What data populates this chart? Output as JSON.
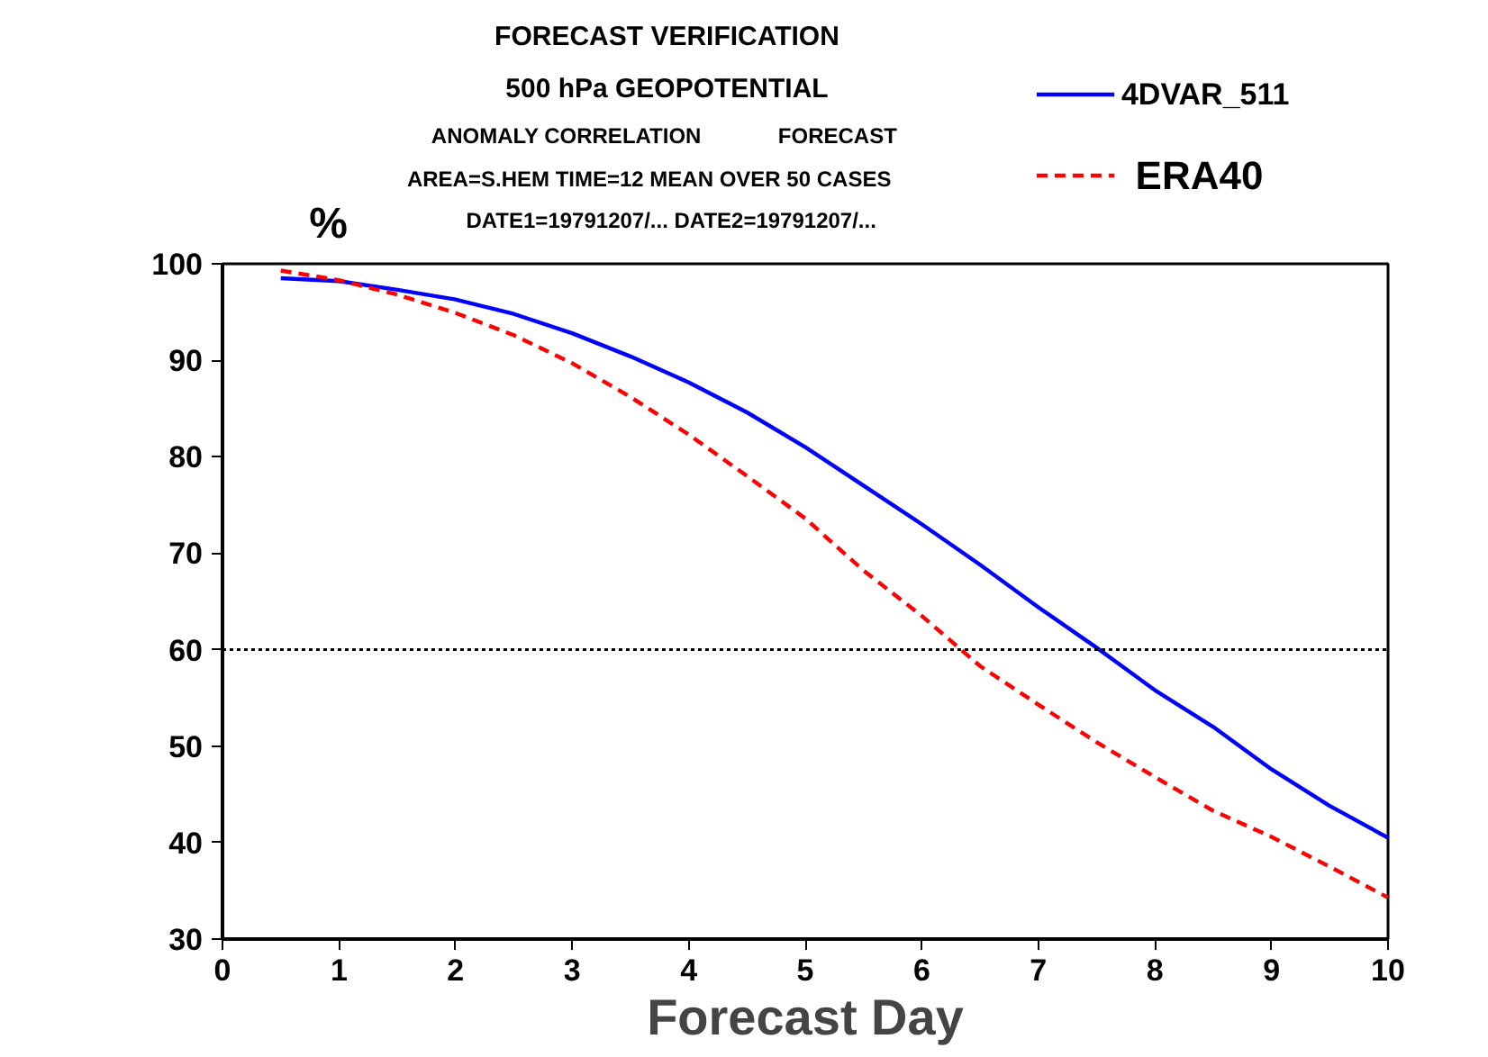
{
  "chart_data": {
    "type": "line",
    "title": "FORECAST VERIFICATION",
    "subtitle": "500 hPa GEOPOTENTIAL",
    "annotations": [
      "ANOMALY CORRELATION",
      "FORECAST",
      "AREA=S.HEM   TIME=12   MEAN OVER  50 CASES",
      "DATE1=19791207/... DATE2=19791207/..."
    ],
    "xlabel": "Forecast Day",
    "ylabel": "%",
    "x": [
      0.5,
      1,
      1.5,
      2,
      2.5,
      3,
      3.5,
      4,
      4.5,
      5,
      5.5,
      6,
      6.5,
      7,
      7.5,
      8,
      8.5,
      9,
      9.5,
      10
    ],
    "series": [
      {
        "name": "4DVAR_511",
        "color": "#0000ff",
        "line_style": "solid",
        "values": [
          98.5,
          98.2,
          97.3,
          96.3,
          94.8,
          92.8,
          90.4,
          87.7,
          84.6,
          81.0,
          77.0,
          73.0,
          68.8,
          64.4,
          60.2,
          55.8,
          52.0,
          47.6,
          43.8,
          40.5
        ]
      },
      {
        "name": "ERA40",
        "color": "#ff0000",
        "line_style": "dashed",
        "values": [
          99.3,
          98.3,
          96.8,
          94.9,
          92.6,
          89.7,
          86.2,
          82.3,
          78.0,
          73.6,
          68.2,
          63.5,
          58.3,
          54.3,
          50.4,
          46.8,
          43.3,
          40.6,
          37.5,
          34.3
        ]
      }
    ],
    "xlim": [
      0,
      10
    ],
    "xticks": [
      0,
      1,
      2,
      3,
      4,
      5,
      6,
      7,
      8,
      9,
      10
    ],
    "ylim": [
      30,
      100
    ],
    "yticks": [
      30,
      40,
      50,
      60,
      70,
      80,
      90,
      100
    ],
    "ref_lines": [
      {
        "axis": "y",
        "value": 60,
        "color": "#000000",
        "line_style": "dotted"
      }
    ],
    "grid": false,
    "legend": "top right",
    "marker": "none"
  }
}
